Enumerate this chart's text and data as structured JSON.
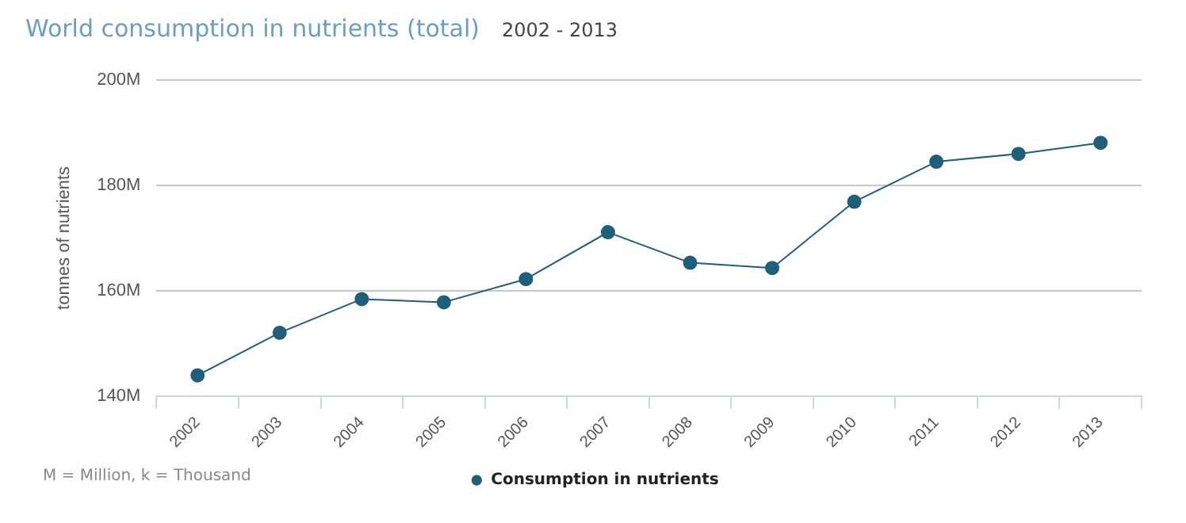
{
  "chart_data": {
    "type": "line",
    "title": "World consumption in nutrients (total)",
    "subtitle": "2002 - 2013",
    "ylabel": "tonnes of nutrients",
    "categories": [
      "2002",
      "2003",
      "2004",
      "2005",
      "2006",
      "2007",
      "2008",
      "2009",
      "2010",
      "2011",
      "2012",
      "2013"
    ],
    "series": [
      {
        "name": "Consumption in nutrients",
        "color": "#1f5f7a",
        "values": [
          143.9,
          152.0,
          158.4,
          157.8,
          162.2,
          171.1,
          165.3,
          164.3,
          176.9,
          184.5,
          186.0,
          188.1
        ]
      }
    ],
    "ylim": [
      140,
      200
    ],
    "yticks": [
      {
        "value": 140,
        "label": "140M"
      },
      {
        "value": 160,
        "label": "160M"
      },
      {
        "value": 180,
        "label": "180M"
      },
      {
        "value": 200,
        "label": "200M"
      }
    ],
    "grid": "y",
    "legend": "bottom",
    "marker": "circle",
    "line_style": "solid",
    "annotations": [
      "M = Million, k = Thousand"
    ]
  }
}
